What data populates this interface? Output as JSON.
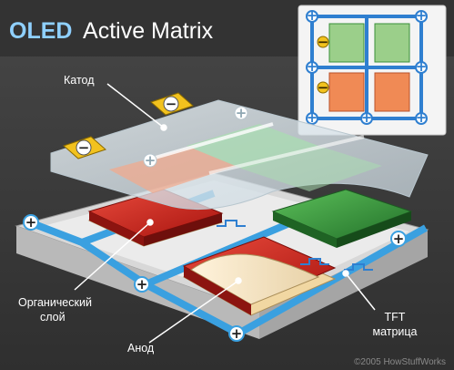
{
  "title": {
    "accent": "OLED",
    "rest": "Active Matrix"
  },
  "labels": {
    "cathode": "Катод",
    "organic_line1": "Органический",
    "organic_line2": "слой",
    "anode": "Анод",
    "tft_line1": "TFT",
    "tft_line2": "матрица"
  },
  "signs": {
    "minus": "−",
    "plus": "+"
  },
  "copyright": "©2005 HowStuffWorks",
  "colors": {
    "background_dark": "#3c3c3c",
    "title_bar": "#2e2e2e",
    "title_accent": "#8fd0ff",
    "wire_blue": "#3aa0e0",
    "red_pixel": "#c8201e",
    "green_pixel": "#3c9a3c",
    "terminal_yellow": "#f2c21e",
    "panel_light": "#f2f2f2"
  }
}
